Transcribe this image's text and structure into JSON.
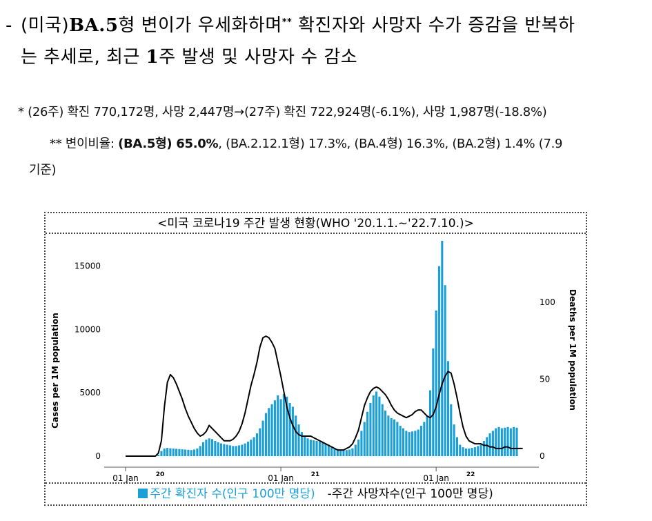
{
  "heading": {
    "bullet": "-",
    "line1_part1": "(미국)",
    "line1_bold": "BA.5",
    "line1_part2": "형 변이가 우세화하며",
    "line1_sup": "**",
    "line1_part3": " 확진자와 사망자 수가 증감을 반복하",
    "line2_part1": "는 추세로, 최근 ",
    "line2_bold": "1",
    "line2_part2": "주 발생 및 사망자 수 감소"
  },
  "notes": {
    "note1": "* (26주) 확진 770,172명, 사망 2,447명→(27주) 확진 722,924명(-6.1%), 사망 1,987명(-18.8%)",
    "note2_a": "** 변이비율: ",
    "note2_bold": "(BA.5형) 65.0%",
    "note2_b": ", (BA.2.12.1형) 17.3%, (BA.4형) 16.3%, (BA.2형) 1.4% (7.9",
    "note3": "기준)"
  },
  "chart_frame": {
    "title": "<미국 코로나19 주간 발생 현황(WHO '20.1.1.~'22.7.10.)>",
    "legend_cases": "주간 확진자 수(인구 100만 명당)",
    "legend_deaths": "-주간 사망자수(인구 100만 명당)"
  },
  "colors": {
    "bars": "#1a9fd9",
    "line": "#000000",
    "axis": "#555555"
  },
  "chart_data": {
    "type": "bar+line",
    "title": "미국 코로나19 주간 발생 현황",
    "ylabel_left": "Cases per 1M population",
    "ylabel_right": "Deaths per 1M population",
    "ylim_left": [
      0,
      17000
    ],
    "ylim_right": [
      0,
      140
    ],
    "yticks_left": [
      "0",
      "5000",
      "10000",
      "15000"
    ],
    "yticks_right": [
      "0",
      "50",
      "100"
    ],
    "xticks": [
      {
        "label": "01 Jan",
        "year": "20",
        "week": 0
      },
      {
        "label": "01 Jan",
        "year": "21",
        "week": 52
      },
      {
        "label": "01 Jan",
        "year": "22",
        "week": 104
      }
    ],
    "series": [
      {
        "name": "주간 확진자 수(인구 100만 명당)",
        "kind": "bar",
        "axis": "left",
        "values": [
          0,
          0,
          0,
          0,
          0,
          0,
          0,
          0,
          0,
          0,
          5,
          120,
          400,
          600,
          650,
          620,
          600,
          580,
          560,
          540,
          520,
          500,
          480,
          520,
          600,
          800,
          1100,
          1300,
          1400,
          1350,
          1200,
          1100,
          1000,
          950,
          900,
          850,
          800,
          800,
          850,
          900,
          1000,
          1150,
          1300,
          1500,
          1800,
          2200,
          2800,
          3400,
          3800,
          4100,
          4400,
          4800,
          4500,
          4900,
          4700,
          4200,
          3900,
          3200,
          2500,
          1900,
          1600,
          1400,
          1300,
          1250,
          1200,
          1150,
          1100,
          1000,
          900,
          780,
          650,
          560,
          520,
          480,
          480,
          520,
          620,
          900,
          1300,
          2000,
          2700,
          3500,
          4200,
          4800,
          5100,
          4700,
          4100,
          3600,
          3200,
          3000,
          2900,
          2700,
          2400,
          2200,
          2000,
          1900,
          1950,
          2000,
          2100,
          2400,
          2700,
          3200,
          5200,
          8500,
          11500,
          15000,
          17000,
          13500,
          7500,
          4100,
          2500,
          1500,
          900,
          700,
          600,
          600,
          650,
          700,
          800,
          900,
          1200,
          1500,
          1800,
          2000,
          2200,
          2300,
          2200,
          2250,
          2300,
          2200,
          2300,
          2250
        ]
      },
      {
        "name": "주간 사망자수(인구 100만 명당)",
        "kind": "line",
        "axis": "right",
        "values": [
          0,
          0,
          0,
          0,
          0,
          0,
          0,
          0,
          0,
          0,
          0,
          2,
          10,
          32,
          48,
          53,
          51,
          47,
          42,
          37,
          31,
          26,
          22,
          18,
          15,
          13,
          14,
          16,
          20,
          18,
          16,
          14,
          12,
          10,
          10,
          10,
          11,
          13,
          16,
          21,
          28,
          37,
          46,
          53,
          61,
          71,
          77,
          78,
          77,
          74,
          70,
          61,
          52,
          42,
          32,
          25,
          20,
          16,
          14,
          13,
          13,
          13,
          13,
          12,
          11,
          10,
          9,
          8,
          7,
          6,
          5,
          4,
          4,
          4,
          5,
          6,
          8,
          12,
          17,
          25,
          33,
          38,
          42,
          44,
          45,
          44,
          42,
          40,
          37,
          33,
          30,
          28,
          27,
          26,
          25,
          26,
          27,
          29,
          30,
          30,
          28,
          26,
          25,
          27,
          32,
          40,
          47,
          52,
          55,
          54,
          47,
          38,
          28,
          19,
          13,
          10,
          9,
          8,
          8,
          8,
          7,
          7,
          6,
          6,
          5,
          5,
          5,
          6,
          6,
          5,
          5,
          5,
          5,
          5
        ]
      }
    ]
  }
}
